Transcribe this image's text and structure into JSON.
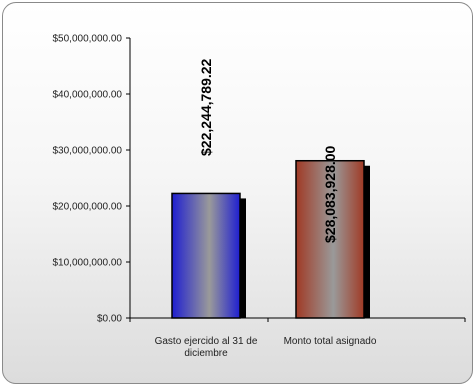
{
  "chart_data": {
    "type": "bar",
    "categories": [
      "Gasto ejercido al 31 de diciembre",
      "Monto total asignado"
    ],
    "category_lines": [
      [
        "Gasto ejercido al 31 de",
        "diciembre"
      ],
      [
        "Monto total asignado"
      ]
    ],
    "values": [
      22244789.22,
      28083928.0
    ],
    "data_labels": [
      "$22,244,789.22",
      "$28,083,928.00"
    ],
    "ylim": [
      0,
      50000000
    ],
    "yticks": [
      0,
      10000000,
      20000000,
      30000000,
      40000000,
      50000000
    ],
    "ytick_labels": [
      "$0.00",
      "$10,000,000.00",
      "$20,000,000.00",
      "$30,000,000.00",
      "$40,000,000.00",
      "$50,000,000.00"
    ],
    "bar_colors": [
      "#1f1fd0",
      "#a03a25"
    ],
    "grid": false,
    "legend": "none",
    "title": "",
    "xlabel": "",
    "ylabel": ""
  }
}
